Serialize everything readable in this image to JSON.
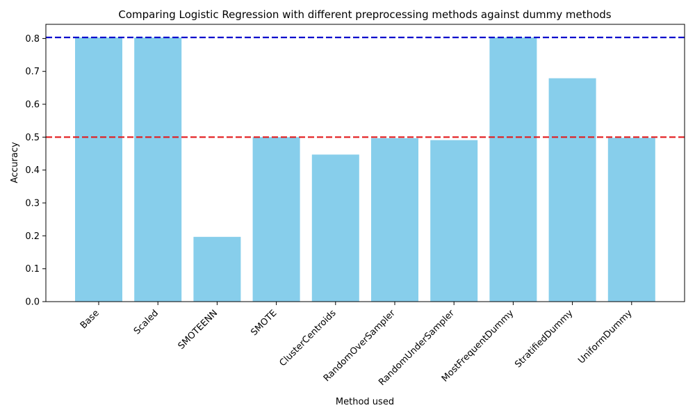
{
  "chart_data": {
    "type": "bar",
    "title": "Comparing Logistic Regression with different preprocessing methods against dummy methods",
    "xlabel": "Method used",
    "ylabel": "Accuracy",
    "categories": [
      "Base",
      "Scaled",
      "SMOTEENN",
      "SMOTE",
      "ClusterCentroids",
      "RandomOverSampler",
      "RandomUnderSampler",
      "MostFrequentDummy",
      "StratifiedDummy",
      "UniformDummy"
    ],
    "values": [
      0.803,
      0.803,
      0.197,
      0.5,
      0.447,
      0.497,
      0.491,
      0.803,
      0.679,
      0.498
    ],
    "ylim": [
      0,
      0.843
    ],
    "yticks": [
      "0.0",
      "0.1",
      "0.2",
      "0.3",
      "0.4",
      "0.5",
      "0.6",
      "0.7",
      "0.8"
    ],
    "reference_lines": [
      {
        "value": 0.803,
        "color": "#0000cc",
        "style": "dashed"
      },
      {
        "value": 0.5,
        "color": "#e31a1c",
        "style": "dashed"
      }
    ],
    "bar_color": "#87ceeb",
    "grid": false,
    "legend": "none"
  }
}
